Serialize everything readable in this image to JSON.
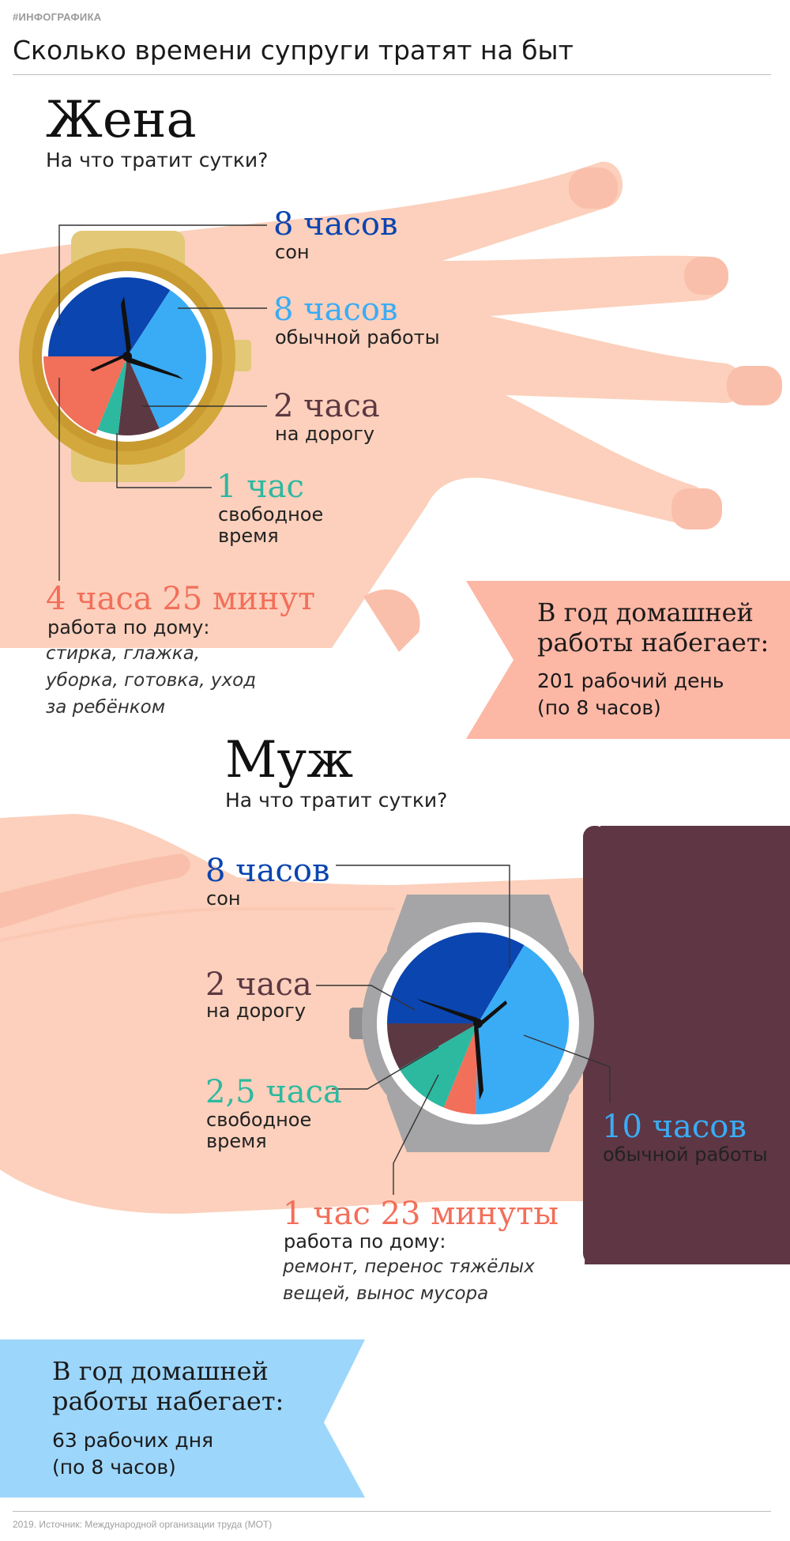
{
  "header": {
    "tag": "#ИНФОГРАФИКА",
    "title": "Сколько времени супруги тратят на быт"
  },
  "wife": {
    "title": "Жена",
    "subtitle": "На что тратит сутки?",
    "items": [
      {
        "amount": "8 часов",
        "label": "сон"
      },
      {
        "amount": "8 часов",
        "label": "обычной работы"
      },
      {
        "amount": "2 часа",
        "label": "на дорогу"
      },
      {
        "amount": "1 час",
        "label": "свободное время"
      },
      {
        "amount": "4 часа 25 минут",
        "label": "работа по дому:",
        "detail": "стирка, глажка, уборка, готовка, уход за ребёнком"
      }
    ],
    "yearly": {
      "heading": "В год домашней работы набегает:",
      "text": "201 рабочий день (по 8 часов)"
    }
  },
  "husband": {
    "title": "Муж",
    "subtitle": "На что тратит сутки?",
    "items": [
      {
        "amount": "8 часов",
        "label": "сон"
      },
      {
        "amount": "2 часа",
        "label": "на дорогу"
      },
      {
        "amount": "2,5 часа",
        "label": "свободное время"
      },
      {
        "amount": "10 часов",
        "label": "обычной работы"
      },
      {
        "amount": "1 час 23 минуты",
        "label": "работа по дому:",
        "detail": "ремонт, перенос тяжёлых вещей, вынос мусора"
      }
    ],
    "yearly": {
      "heading": "В год домашней работы набегает:",
      "text": "63 рабочих дня (по 8 часов)"
    }
  },
  "footer": {
    "source": "2019. Источник: Международной организации труда (МОТ)"
  },
  "colors": {
    "sleep": "#0b45b0",
    "work": "#3aacf5",
    "commute": "#5c3842",
    "free": "#2cb9a0",
    "housework": "#f26f5a",
    "skin": "#fcd0bc",
    "gold_watch": "#d3a83c",
    "gray_watch": "#a5a5a7",
    "wife_box": "#fdb7a5",
    "husband_box": "#9dd6fb",
    "sleeve": "#5e3644"
  },
  "chart_data": [
    {
      "type": "pie",
      "title": "Жена",
      "unit": "hours",
      "slices": [
        {
          "name": "сон",
          "value": 8
        },
        {
          "name": "обычной работы",
          "value": 8
        },
        {
          "name": "на дорогу",
          "value": 2
        },
        {
          "name": "свободное время",
          "value": 1
        },
        {
          "name": "работа по дому",
          "value": 4.42
        }
      ]
    },
    {
      "type": "pie",
      "title": "Муж",
      "unit": "hours",
      "slices": [
        {
          "name": "сон",
          "value": 8
        },
        {
          "name": "обычной работы",
          "value": 10
        },
        {
          "name": "работа по дому",
          "value": 1.38
        },
        {
          "name": "свободное время",
          "value": 2.5
        },
        {
          "name": "на дорогу",
          "value": 2
        }
      ]
    }
  ]
}
